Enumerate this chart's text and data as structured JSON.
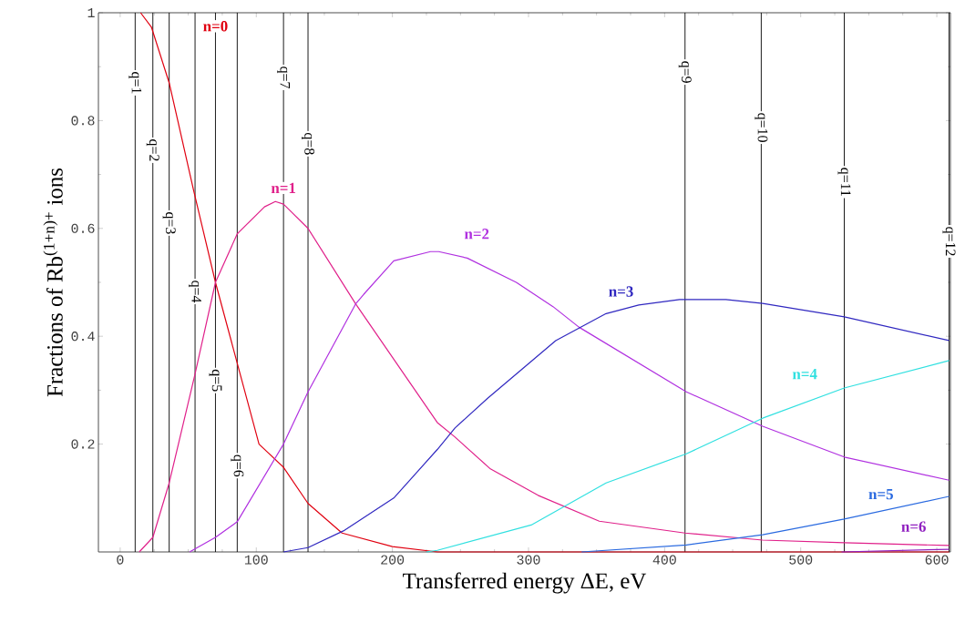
{
  "chart_data": {
    "type": "line",
    "xlabel": "Transferred energy ΔE, eV",
    "ylabel": "Fractions of Rb$^{(1+n)+}$ ions",
    "xlim": [
      -16,
      610
    ],
    "ylim": [
      0,
      1
    ],
    "xticks": [
      0,
      100,
      200,
      300,
      400,
      500,
      600
    ],
    "yticks": [
      0.2,
      0.4,
      0.6,
      0.8,
      1
    ],
    "series": [
      {
        "name": "n=0",
        "color": "#e00010",
        "x": [
          15,
          23,
          36,
          54,
          70,
          86,
          102,
          120,
          138,
          163,
          200,
          233,
          609
        ],
        "values": [
          1,
          0.973,
          0.87,
          0.67,
          0.5,
          0.35,
          0.2,
          0.157,
          0.09,
          0.035,
          0.01,
          0,
          0
        ]
      },
      {
        "name": "n=1",
        "color": "#e0208a",
        "x": [
          14,
          24,
          36,
          55,
          70,
          86,
          106,
          114,
          120,
          138,
          173,
          233,
          246,
          272,
          307,
          352,
          415,
          472,
          532,
          609
        ],
        "values": [
          0,
          0.027,
          0.128,
          0.33,
          0.5,
          0.59,
          0.64,
          0.65,
          0.645,
          0.6,
          0.46,
          0.24,
          0.213,
          0.154,
          0.105,
          0.057,
          0.035,
          0.022,
          0.017,
          0.012
        ]
      },
      {
        "name": "n=2",
        "color": "#b030e0",
        "x": [
          51,
          70,
          86,
          120,
          138,
          173,
          179,
          201,
          228,
          234,
          255,
          291,
          318,
          337,
          416,
          472,
          532,
          609
        ],
        "values": [
          0,
          0.027,
          0.056,
          0.2,
          0.297,
          0.46,
          0.478,
          0.54,
          0.557,
          0.557,
          0.545,
          0.5,
          0.455,
          0.417,
          0.297,
          0.233,
          0.176,
          0.133
        ]
      },
      {
        "name": "n=3",
        "color": "#3028c0",
        "x": [
          120,
          138,
          164,
          201,
          233,
          246,
          270,
          320,
          357,
          381,
          411,
          445,
          472,
          532,
          609
        ],
        "values": [
          0,
          0.008,
          0.039,
          0.1,
          0.19,
          0.23,
          0.285,
          0.392,
          0.442,
          0.458,
          0.468,
          0.468,
          0.461,
          0.436,
          0.392
        ]
      },
      {
        "name": "n=4",
        "color": "#30e0e0",
        "x": [
          225,
          233,
          302,
          357,
          416,
          472,
          532,
          609
        ],
        "values": [
          0,
          0.003,
          0.05,
          0.128,
          0.182,
          0.248,
          0.304,
          0.355
        ]
      },
      {
        "name": "n=5",
        "color": "#2a6ae0",
        "x": [
          339,
          416,
          472,
          532,
          609
        ],
        "values": [
          0,
          0.013,
          0.032,
          0.061,
          0.103
        ]
      },
      {
        "name": "n=6",
        "color": "#9020c0",
        "x": [
          530,
          609
        ],
        "values": [
          0,
          0.005
        ]
      }
    ],
    "ref_lines": [
      {
        "axis": "x",
        "value": 11
      },
      {
        "axis": "x",
        "value": 24
      },
      {
        "axis": "x",
        "value": 36
      },
      {
        "axis": "x",
        "value": 55
      },
      {
        "axis": "x",
        "value": 70
      },
      {
        "axis": "x",
        "value": 86
      },
      {
        "axis": "x",
        "value": 120
      },
      {
        "axis": "x",
        "value": 138
      },
      {
        "axis": "x",
        "value": 415
      },
      {
        "axis": "x",
        "value": 471
      },
      {
        "axis": "x",
        "value": 532
      },
      {
        "axis": "x",
        "value": 609
      }
    ],
    "annotations": [
      {
        "text": "q=1",
        "x": 11,
        "y": 0.87
      },
      {
        "text": "q=2",
        "x": 24,
        "y": 0.745
      },
      {
        "text": "q=3",
        "x": 36,
        "y": 0.61
      },
      {
        "text": "q=4",
        "x": 55,
        "y": 0.483
      },
      {
        "text": "q=5",
        "x": 70,
        "y": 0.318
      },
      {
        "text": "q=6",
        "x": 86,
        "y": 0.16
      },
      {
        "text": "q=7",
        "x": 120,
        "y": 0.88
      },
      {
        "text": "q=8",
        "x": 138,
        "y": 0.757
      },
      {
        "text": "q=9",
        "x": 415,
        "y": 0.89
      },
      {
        "text": "q=10",
        "x": 471,
        "y": 0.787
      },
      {
        "text": "q=11",
        "x": 532,
        "y": 0.686
      },
      {
        "text": "q=12",
        "x": 609,
        "y": 0.576
      }
    ]
  }
}
